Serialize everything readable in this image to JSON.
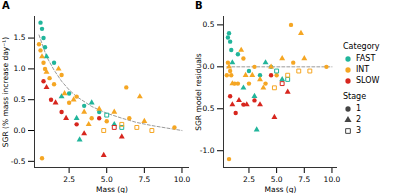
{
  "chart_data": [
    {
      "type": "scatter",
      "title": "A",
      "x_label": "Mass (g)",
      "y_label": "SGR (% mass increase day⁻¹)",
      "xlim": [
        0.2,
        10.5
      ],
      "ylim": [
        -0.6,
        1.85
      ],
      "xticks": [
        {
          "value": 2.5,
          "label": "2.5"
        },
        {
          "value": 5,
          "label": "5.0"
        },
        {
          "value": 7.5,
          "label": "7.5"
        },
        {
          "value": 10,
          "label": "10.0"
        }
      ],
      "yticks": [
        {
          "value": -0.5,
          "label": "-0.5"
        },
        {
          "value": 0,
          "label": "0.0"
        },
        {
          "value": 0.5,
          "label": "0.5"
        },
        {
          "value": 1,
          "label": "1.0"
        },
        {
          "value": 1.5,
          "label": "1.5"
        }
      ],
      "series": [
        {
          "name": "FAST",
          "color": "#21b59b",
          "x": [
            0.6,
            0.7,
            0.8,
            0.9,
            1.0,
            1.5,
            2.0,
            2.5,
            3.0,
            3.5,
            4.0,
            4.5,
            5.0,
            5.5,
            6.0,
            3.2
          ],
          "values": [
            1.75,
            1.65,
            1.5,
            1.35,
            1.2,
            1.1,
            0.55,
            0.6,
            0.2,
            0.4,
            0.45,
            0.3,
            0.25,
            0.1,
            0.05,
            -0.15
          ],
          "stage": [
            1,
            1,
            1,
            1,
            2,
            1,
            2,
            1,
            2,
            1,
            2,
            1,
            3,
            2,
            3,
            2
          ]
        },
        {
          "name": "INT",
          "color": "#f5a623",
          "x": [
            0.5,
            0.6,
            0.7,
            0.8,
            0.9,
            1.0,
            1.2,
            1.5,
            1.8,
            2.0,
            2.2,
            2.5,
            2.8,
            3.0,
            3.5,
            4.0,
            4.5,
            5.0,
            5.5,
            6.0,
            6.5,
            7.0,
            7.5,
            8.0,
            9.5,
            0.7,
            3.8,
            4.8,
            6.3,
            7.2
          ],
          "values": [
            1.4,
            1.3,
            1.2,
            1.1,
            1.0,
            0.95,
            0.85,
            0.75,
            1.0,
            0.9,
            0.6,
            0.45,
            0.5,
            0.55,
            0.3,
            0.2,
            0.35,
            0.15,
            0.3,
            0.1,
            0.2,
            0.05,
            0.15,
            0.0,
            0.05,
            -0.45,
            0.1,
            0.0,
            0.7,
            0.55
          ],
          "stage": [
            1,
            1,
            2,
            1,
            1,
            2,
            1,
            1,
            2,
            1,
            2,
            1,
            2,
            1,
            2,
            1,
            2,
            1,
            2,
            3,
            1,
            3,
            2,
            3,
            1,
            1,
            2,
            3,
            1,
            2
          ]
        },
        {
          "name": "SLOW",
          "color": "#d7261e",
          "x": [
            0.8,
            1.0,
            1.3,
            1.6,
            2.0,
            2.3,
            3.0,
            3.5,
            4.5,
            4.8,
            5.5,
            6.0
          ],
          "values": [
            0.8,
            0.7,
            0.5,
            0.45,
            0.3,
            0.2,
            0.1,
            -0.05,
            0.2,
            -0.4,
            0.05,
            -0.1
          ],
          "stage": [
            1,
            2,
            1,
            2,
            1,
            2,
            1,
            2,
            1,
            2,
            3,
            2
          ]
        }
      ],
      "fit": {
        "type": "line",
        "line_style": "dashed",
        "color": "#9a9a9a",
        "x": [
          0.5,
          1,
          1.5,
          2,
          2.5,
          3,
          4,
          5,
          6,
          7,
          8,
          9,
          10
        ],
        "values": [
          1.55,
          1.2,
          0.98,
          0.8,
          0.66,
          0.55,
          0.39,
          0.28,
          0.2,
          0.13,
          0.08,
          0.04,
          0.0
        ]
      }
    },
    {
      "type": "scatter",
      "title": "B",
      "x_label": "Mass (g)",
      "y_label": "SGR model residuals",
      "xlim": [
        0.2,
        10.5
      ],
      "ylim": [
        -1.2,
        0.6
      ],
      "xticks": [
        {
          "value": 2.5,
          "label": "2.5"
        },
        {
          "value": 5,
          "label": "5.0"
        },
        {
          "value": 7.5,
          "label": "7.5"
        },
        {
          "value": 10,
          "label": "10.0"
        }
      ],
      "yticks": [
        {
          "value": -1,
          "label": "-1.0"
        },
        {
          "value": -0.5,
          "label": "-0.5"
        },
        {
          "value": 0,
          "label": "0.0"
        },
        {
          "value": 0.5,
          "label": "0.5"
        }
      ],
      "legend": "right",
      "category_title": "Category",
      "stage_title": "Stage",
      "stages": [
        {
          "name": "1",
          "marker": "circle"
        },
        {
          "name": "2",
          "marker": "triangle"
        },
        {
          "name": "3",
          "marker": "open square"
        }
      ],
      "series": [
        {
          "name": "FAST",
          "color": "#21b59b",
          "x": [
            0.6,
            0.7,
            0.8,
            0.9,
            1.0,
            1.5,
            2.0,
            2.5,
            3.0,
            3.5,
            4.0,
            4.5,
            5.0,
            5.5,
            6.0,
            3.2
          ],
          "values": [
            0.35,
            0.4,
            0.3,
            0.2,
            0.05,
            0.15,
            -0.25,
            -0.05,
            -0.35,
            -0.1,
            0.05,
            0.0,
            -0.05,
            -0.15,
            -0.15,
            -0.75
          ],
          "stage": [
            1,
            1,
            1,
            1,
            2,
            1,
            2,
            1,
            2,
            1,
            2,
            1,
            3,
            2,
            3,
            2
          ]
        },
        {
          "name": "INT",
          "color": "#f5a623",
          "x": [
            0.5,
            0.6,
            0.7,
            0.8,
            0.9,
            1.0,
            1.2,
            1.5,
            1.8,
            2.0,
            2.2,
            2.5,
            2.8,
            3.0,
            3.5,
            4.0,
            4.5,
            5.0,
            5.5,
            6.0,
            6.5,
            7.0,
            7.5,
            8.0,
            9.5,
            0.7,
            3.8,
            4.8,
            6.3,
            7.2
          ],
          "values": [
            -0.1,
            0.05,
            0.0,
            -0.05,
            -0.1,
            -0.2,
            -0.2,
            -0.2,
            0.2,
            0.1,
            -0.1,
            -0.2,
            -0.1,
            0.0,
            -0.15,
            -0.2,
            0.0,
            -0.1,
            0.1,
            -0.1,
            0.05,
            -0.05,
            0.1,
            -0.05,
            0.0,
            -1.1,
            -0.25,
            -0.25,
            0.5,
            0.4
          ],
          "stage": [
            1,
            1,
            2,
            1,
            1,
            2,
            1,
            1,
            2,
            1,
            2,
            1,
            2,
            1,
            2,
            1,
            2,
            1,
            2,
            3,
            1,
            3,
            2,
            3,
            1,
            1,
            2,
            3,
            1,
            2
          ]
        },
        {
          "name": "SLOW",
          "color": "#d7261e",
          "x": [
            0.8,
            1.0,
            1.3,
            1.6,
            2.0,
            2.3,
            3.0,
            3.5,
            4.5,
            4.8,
            5.5,
            6.0
          ],
          "values": [
            -0.35,
            -0.45,
            -0.55,
            -0.4,
            -0.45,
            -0.45,
            -0.4,
            -0.45,
            -0.1,
            -0.6,
            -0.2,
            -0.3
          ],
          "stage": [
            1,
            2,
            1,
            2,
            1,
            2,
            1,
            2,
            1,
            2,
            3,
            2
          ]
        }
      ],
      "fit": {
        "type": "line",
        "line_style": "dashed",
        "color": "#9a9a9a",
        "x": [
          0.5,
          10
        ],
        "values": [
          0,
          0
        ]
      }
    }
  ]
}
